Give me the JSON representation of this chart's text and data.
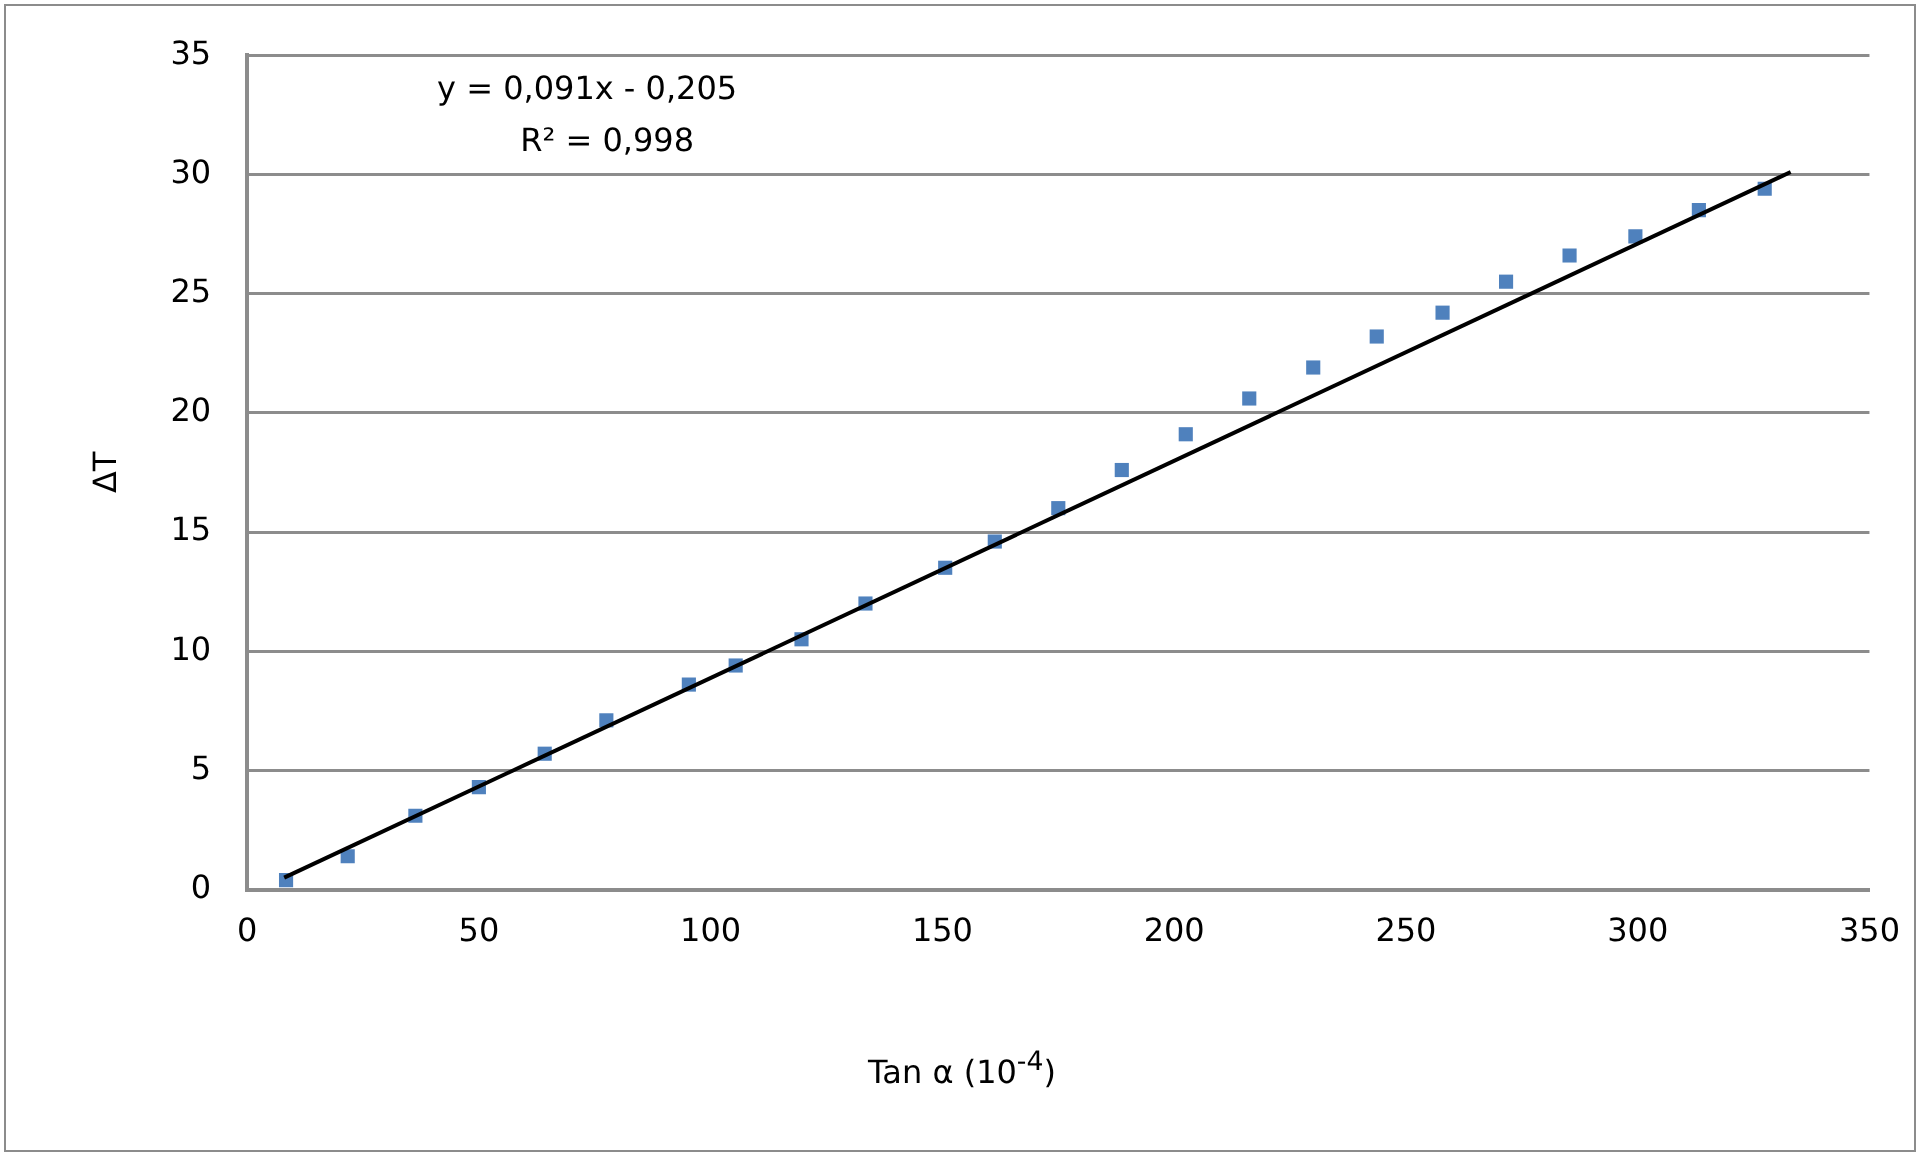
{
  "chart_data": {
    "type": "scatter",
    "xlabel": "Tan α (10$^{-4}$)",
    "ylabel": "ΔT",
    "annotations": [
      "y = 0,091x - 0,205",
      "R² = 0,998"
    ],
    "x": [
      8.4,
      21.7,
      36.3,
      50,
      64.2,
      77.5,
      95.3,
      105.4,
      119.6,
      133.4,
      150.6,
      161.3,
      175,
      188.7,
      202.5,
      216.2,
      230,
      243.7,
      257.9,
      271.6,
      285.3,
      299.5,
      313.2,
      327.4
    ],
    "series": [
      {
        "color": "#4f81bd",
        "values": [
          0.4,
          1.4,
          3.1,
          4.3,
          5.7,
          7.1,
          8.6,
          9.4,
          10.5,
          12.0,
          13.5,
          14.6,
          16.0,
          17.6,
          19.1,
          20.6,
          21.9,
          23.2,
          24.2,
          25.5,
          26.6,
          27.4,
          28.5,
          29.4
        ]
      },
      {
        "type": "line",
        "color": "#000000",
        "x": [
          8,
          333
        ],
        "values": [
          0.5,
          30.1
        ],
        "marker": "none"
      }
    ],
    "marker": "square",
    "xlim": [
      0,
      350
    ],
    "xticks": [
      0,
      50,
      100,
      150,
      200,
      250,
      300,
      350
    ],
    "ylim": [
      0,
      35
    ],
    "yticks": [
      0,
      5,
      10,
      15,
      20,
      25,
      30,
      35
    ],
    "grid": "y",
    "legend": false
  }
}
